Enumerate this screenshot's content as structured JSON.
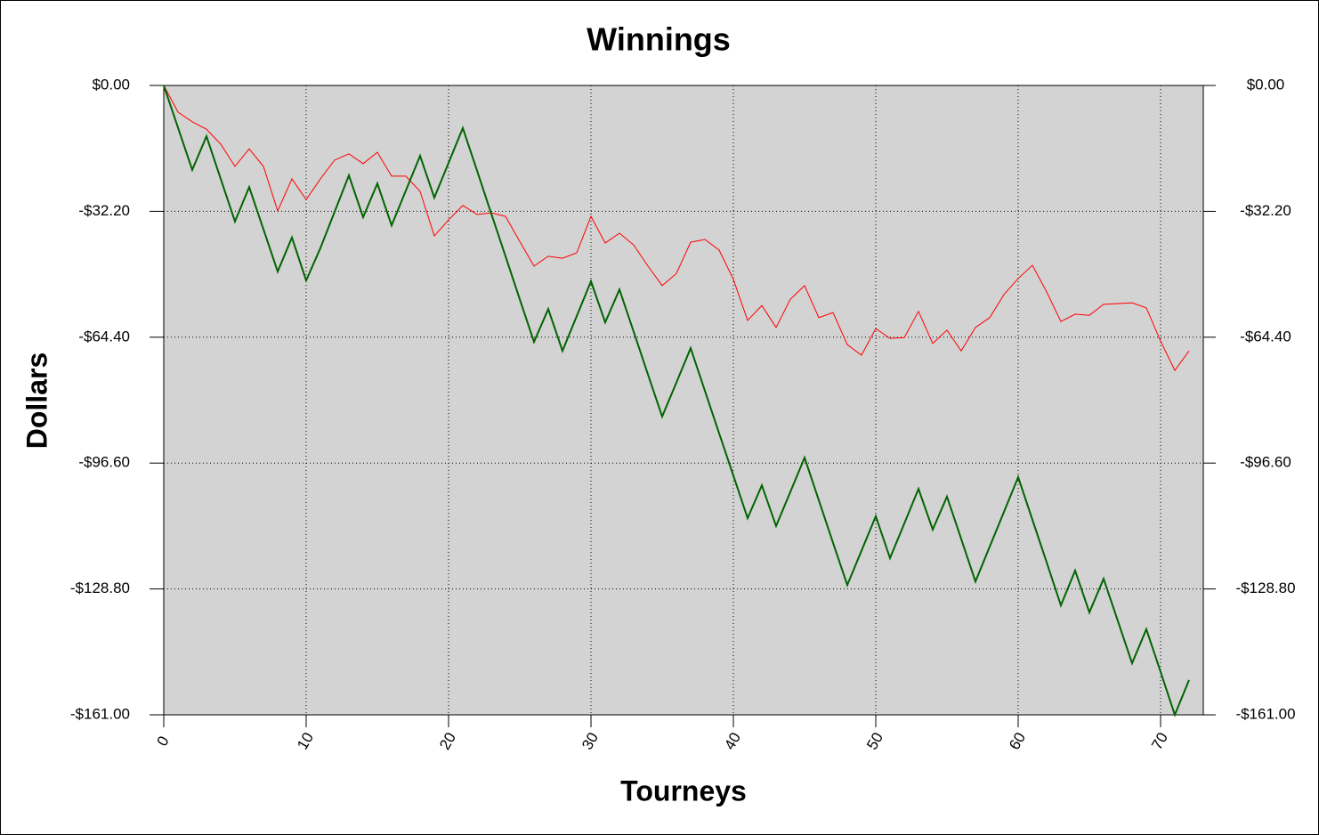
{
  "chart_data": {
    "type": "line",
    "title": "Winnings",
    "x_label": "Tourneys",
    "y_label": "Dollars",
    "x": [
      0,
      1,
      2,
      3,
      4,
      5,
      6,
      7,
      8,
      9,
      10,
      11,
      12,
      13,
      14,
      15,
      16,
      17,
      18,
      19,
      20,
      21,
      22,
      23,
      24,
      25,
      26,
      27,
      28,
      29,
      30,
      31,
      32,
      33,
      34,
      35,
      36,
      37,
      38,
      39,
      40,
      41,
      42,
      43,
      44,
      45,
      46,
      47,
      48,
      49,
      50,
      51,
      52,
      53,
      54,
      55,
      56,
      57,
      58,
      59,
      60,
      61,
      62,
      63,
      64,
      65,
      66,
      67,
      68,
      69,
      70,
      71,
      72
    ],
    "series": [
      {
        "color": "#ff0000",
        "width": 1,
        "values": [
          0,
          -6.8,
          -9.3,
          -11.2,
          -15.0,
          -20.7,
          -16.2,
          -20.7,
          -32.1,
          -23.9,
          -29.2,
          -23.9,
          -19.1,
          -17.5,
          -20.0,
          -17.1,
          -23.2,
          -23.2,
          -27.1,
          -38.5,
          -34.4,
          -30.7,
          -33.0,
          -32.6,
          -33.5,
          -39.9,
          -46.2,
          -43.7,
          -44.2,
          -42.8,
          -33.5,
          -40.3,
          -37.8,
          -40.8,
          -46.2,
          -51.2,
          -48.1,
          -40.1,
          -39.4,
          -42.1,
          -49.6,
          -60.1,
          -56.3,
          -61.9,
          -54.7,
          -51.2,
          -59.4,
          -58.1,
          -66.3,
          -69.0,
          -62.2,
          -64.7,
          -64.5,
          -57.8,
          -66.0,
          -62.6,
          -67.9,
          -61.9,
          -59.4,
          -53.5,
          -49.4,
          -46.0,
          -52.8,
          -60.4,
          -58.5,
          -58.8,
          -56.0,
          -55.8,
          -55.6,
          -56.9,
          -65.4,
          -72.9,
          -67.9
        ]
      },
      {
        "color": "#006400",
        "width": 2,
        "values": [
          0,
          -10.8,
          -21.6,
          -13.0,
          -23.9,
          -34.8,
          -26.0,
          -36.8,
          -47.6,
          -38.9,
          -49.9,
          -41.6,
          -32.3,
          -23.0,
          -33.7,
          -25.1,
          -35.8,
          -26.9,
          -18.0,
          -28.7,
          -19.8,
          -10.9,
          -21.8,
          -32.8,
          -43.7,
          -54.7,
          -65.6,
          -57.2,
          -67.9,
          -59.0,
          -50.1,
          -60.6,
          -52.2,
          -63.0,
          -73.9,
          -84.7,
          -76.0,
          -67.2,
          -78.1,
          -89.0,
          -99.8,
          -110.7,
          -102.3,
          -112.7,
          -104.0,
          -95.2,
          -106.1,
          -117.0,
          -127.8,
          -119.0,
          -110.2,
          -120.9,
          -112.1,
          -103.2,
          -113.6,
          -105.2,
          -116.0,
          -126.9,
          -118.0,
          -109.1,
          -100.2,
          -111.1,
          -122.0,
          -133.0,
          -124.1,
          -134.8,
          -126.2,
          -137.0,
          -147.8,
          -139.1,
          -150.0,
          -161.0,
          -152.1
        ]
      }
    ],
    "xlim": [
      0,
      73
    ],
    "xticks": [
      0,
      10,
      20,
      30,
      40,
      50,
      60,
      70
    ],
    "ylim": [
      -161,
      0
    ],
    "yticks": [
      {
        "value": 0,
        "label": "$0.00"
      },
      {
        "value": -32.2,
        "label": "-$32.20"
      },
      {
        "value": -64.4,
        "label": "-$64.40"
      },
      {
        "value": -96.6,
        "label": "-$96.60"
      },
      {
        "value": -128.8,
        "label": "-$128.80"
      },
      {
        "value": -161,
        "label": "-$161.00"
      }
    ],
    "grid": true,
    "plot_background": "#d3d3d3"
  }
}
